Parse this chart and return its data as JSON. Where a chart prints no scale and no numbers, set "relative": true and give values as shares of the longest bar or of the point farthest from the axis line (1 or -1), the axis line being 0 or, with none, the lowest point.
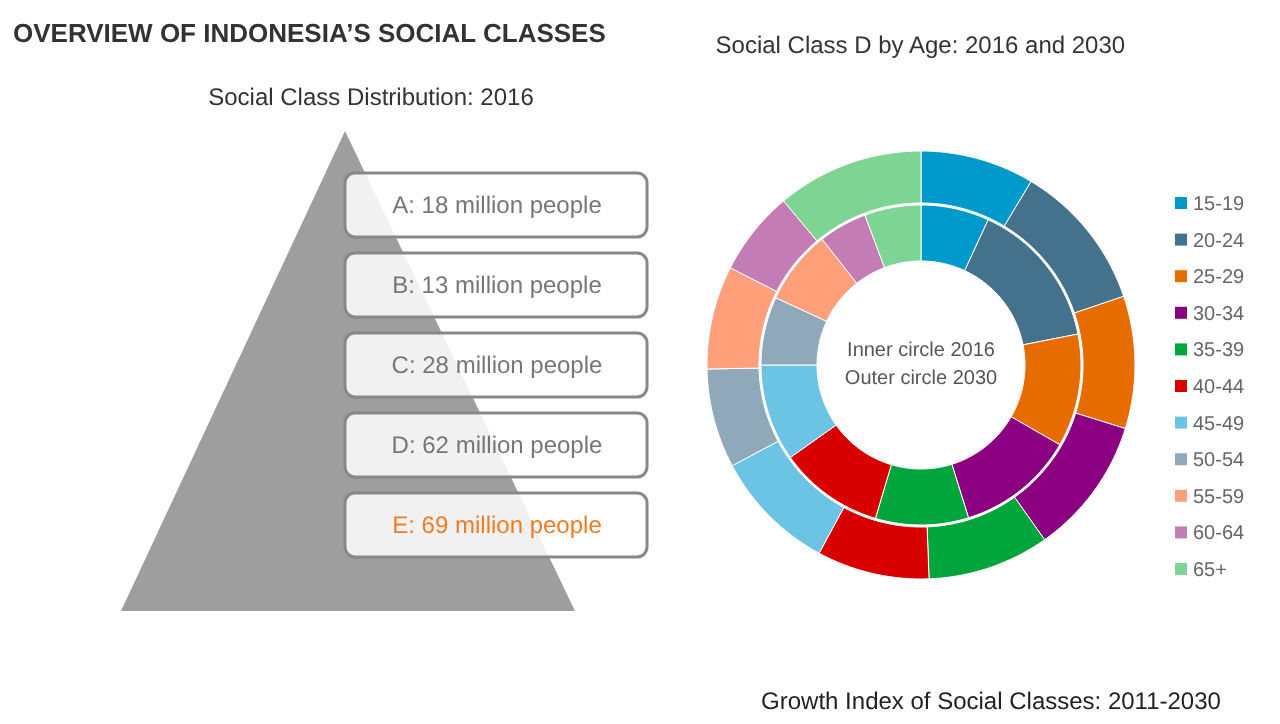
{
  "chart_data": [
    {
      "type": "other",
      "title": "OVERVIEW OF INDONESIA’S SOCIAL CLASSES",
      "subtitle": "Social Class Distribution: 2016",
      "annotations": [
        "A: 18 million people",
        "B: 13 million people",
        "C: 28 million people",
        "D: 62 million people",
        "E: 69 million people"
      ],
      "colors": [
        "#777777",
        "#777777",
        "#777777",
        "#777777",
        "#f07c22"
      ]
    },
    {
      "type": "donut",
      "title": "Social Class D by Age: 2016 and 2030",
      "categories": [
        "15-19",
        "20-24",
        "25-29",
        "30-34",
        "35-39",
        "40-44",
        "45-49",
        "50-54",
        "55-59",
        "60-64",
        "65+"
      ],
      "colors": [
        "#0099cc",
        "#44718c",
        "#e66c00",
        "#8b0080",
        "#00a63c",
        "#d90000",
        "#6cc4e4",
        "#8fa8ba",
        "#ffa07a",
        "#c47cb4",
        "#7ed492"
      ],
      "series": [
        {
          "values": [
            6.9,
            15.0,
            11.4,
            11.9,
            9.4,
            10.6,
            9.8,
            6.9,
            7.5,
            4.9,
            5.7
          ]
        },
        {
          "values": [
            8.6,
            11.2,
            10.0,
            10.4,
            9.2,
            8.5,
            9.3,
            7.5,
            7.8,
            6.4,
            11.1
          ]
        }
      ],
      "relative": true,
      "legend": "right",
      "annotations": [
        "Inner circle 2016",
        "Outer circle 2030",
        "Growth Index of Social Classes: 2011-2030"
      ]
    }
  ]
}
